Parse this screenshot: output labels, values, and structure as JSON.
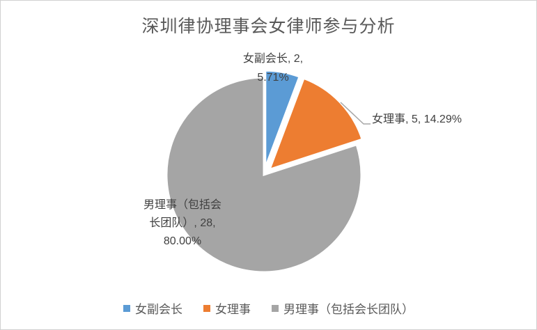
{
  "chart_data": {
    "type": "pie",
    "title": "深圳律协理事会女律师参与分析",
    "categories": [
      "女副会长",
      "女理事",
      "男理事（包括会长团队）"
    ],
    "slices": [
      {
        "label": "女副会长",
        "value": 2,
        "percent": "5.71%",
        "color": "#5B9BD5"
      },
      {
        "label": "女理事",
        "value": 5,
        "percent": "14.29%",
        "color": "#ED7D31"
      },
      {
        "label": "男理事（包括会长团队）",
        "value": 28,
        "percent": "80.00%",
        "color": "#A5A5A5"
      }
    ],
    "total": 35,
    "direction": "clockwise",
    "start_angle_deg": 0,
    "legend_position": "bottom",
    "data_label_format": "category, value, percent"
  },
  "data_labels": {
    "vice_chair": {
      "line1": "女副会长, 2,",
      "line2": "5.71%"
    },
    "female_director": {
      "text": "女理事, 5, 14.29%"
    },
    "male_director": {
      "line1": "男理事（包括会",
      "line2": "长团队）, 28,",
      "line3": "80.00%"
    }
  },
  "legend": {
    "items": [
      {
        "label": "女副会长",
        "color": "#5B9BD5"
      },
      {
        "label": "女理事",
        "color": "#ED7D31"
      },
      {
        "label": "男理事（包括会长团队）",
        "color": "#A5A5A5"
      }
    ]
  },
  "colors": {
    "blue": "#5B9BD5",
    "orange": "#ED7D31",
    "gray": "#A5A5A5",
    "leader_line": "#A6A6A6",
    "title_text": "#595959",
    "label_text": "#404040",
    "border": "#D0D0D0"
  }
}
